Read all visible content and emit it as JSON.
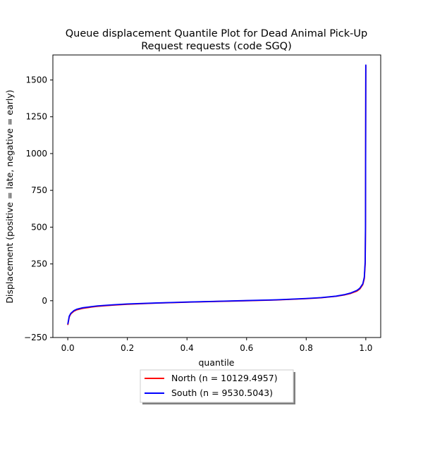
{
  "chart_data": {
    "type": "line",
    "title_line1": "Queue displacement Quantile Plot for Dead Animal Pick-Up",
    "title_line2": "Request  requests (code SGQ)",
    "xlabel": "quantile",
    "ylabel": "Displacement (positive = late, negative = early)",
    "xlim": [
      -0.05,
      1.05
    ],
    "ylim": [
      -250,
      1670
    ],
    "xticks": [
      0.0,
      0.2,
      0.4,
      0.6,
      0.8,
      1.0
    ],
    "xtick_labels": [
      "0.0",
      "0.2",
      "0.4",
      "0.6",
      "0.8",
      "1.0"
    ],
    "yticks": [
      -250,
      0,
      250,
      500,
      750,
      1000,
      1250,
      1500
    ],
    "ytick_labels": [
      "−250",
      "0",
      "250",
      "500",
      "750",
      "1000",
      "1250",
      "1500"
    ],
    "grid": false,
    "legend_position": "below plot, centered",
    "series": [
      {
        "name": "North (n = 10129.4957)",
        "color": "#ff0000",
        "x": [
          0.0,
          0.005,
          0.01,
          0.02,
          0.03,
          0.05,
          0.08,
          0.1,
          0.15,
          0.2,
          0.3,
          0.4,
          0.5,
          0.6,
          0.7,
          0.8,
          0.85,
          0.9,
          0.93,
          0.95,
          0.97,
          0.98,
          0.99,
          0.995,
          0.998,
          0.999,
          1.0
        ],
        "y": [
          -165,
          -110,
          -90,
          -72,
          -62,
          -52,
          -43,
          -38,
          -30,
          -24,
          -16,
          -10,
          -5,
          0,
          5,
          14,
          20,
          30,
          40,
          50,
          65,
          80,
          110,
          150,
          250,
          500,
          1600
        ]
      },
      {
        "name": "South (n = 9530.5043)",
        "color": "#0000ff",
        "x": [
          0.0,
          0.005,
          0.01,
          0.02,
          0.03,
          0.05,
          0.08,
          0.1,
          0.15,
          0.2,
          0.3,
          0.4,
          0.5,
          0.6,
          0.7,
          0.8,
          0.85,
          0.9,
          0.93,
          0.95,
          0.97,
          0.98,
          0.99,
          0.995,
          0.998,
          0.999,
          1.0
        ],
        "y": [
          -160,
          -105,
          -86,
          -68,
          -58,
          -48,
          -40,
          -35,
          -28,
          -22,
          -15,
          -9,
          -4,
          1,
          6,
          15,
          21,
          31,
          42,
          53,
          70,
          85,
          115,
          160,
          270,
          520,
          1605
        ]
      }
    ]
  }
}
